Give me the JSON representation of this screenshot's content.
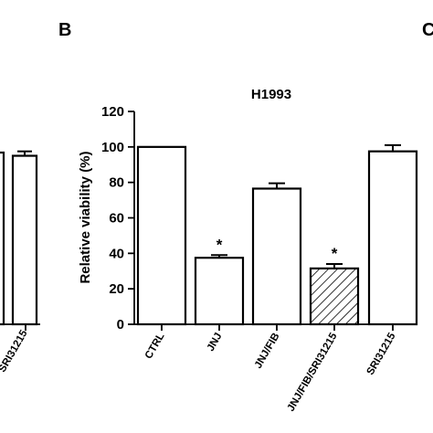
{
  "panel_letters": {
    "left": "B",
    "right": "C"
  },
  "left_panel_fragment": {
    "bar_value": 95,
    "err": 2.5,
    "cut_label": "SRI31215"
  },
  "chart_data": {
    "type": "bar",
    "title": "H1993",
    "ylabel": "Relative viability (%)",
    "xlabel": "",
    "ylim": [
      0,
      120
    ],
    "yticks": [
      0,
      20,
      40,
      60,
      80,
      100,
      120
    ],
    "categories": [
      "CTRL",
      "JNJ",
      "JNJ/FIB",
      "JNJ/FIB/SRI31215",
      "SRI31215"
    ],
    "values": [
      100,
      37.5,
      76.5,
      31.5,
      97.5
    ],
    "errors": [
      0,
      1.5,
      3,
      2.5,
      3.5
    ],
    "significance": [
      "",
      "*",
      "",
      "*",
      ""
    ],
    "bar_fill": [
      "white",
      "white",
      "white",
      "hatched",
      "white"
    ],
    "bar_stroke_color": "#000000",
    "grid": false,
    "legend": "none"
  }
}
